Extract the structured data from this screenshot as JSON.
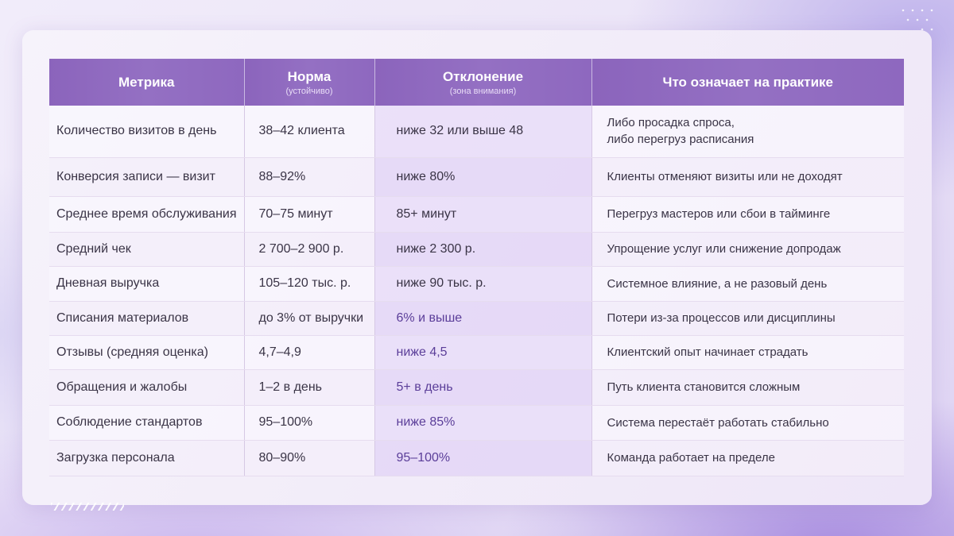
{
  "table": {
    "headers": [
      {
        "title": "Метрика",
        "subtitle": ""
      },
      {
        "title": "Норма",
        "subtitle": "(устойчиво)"
      },
      {
        "title": "Отклонение",
        "subtitle": "(зона внимания)"
      },
      {
        "title": "Что означает на практике",
        "subtitle": ""
      }
    ],
    "rows": [
      {
        "metric": "Количество визитов в день",
        "norm": "38–42 клиента",
        "deviation": "ниже 32 или выше 48",
        "meaning_line1": "Либо просадка спроса,",
        "meaning_line2": "либо перегруз расписания"
      },
      {
        "metric": "Конверсия записи — визит",
        "norm": "88–92%",
        "deviation": "ниже 80%",
        "meaning_line1": "Клиенты отменяют визиты или не доходят",
        "meaning_line2": ""
      },
      {
        "metric": "Среднее время обслуживания",
        "norm": "70–75 минут",
        "deviation": "85+ минут",
        "meaning_line1": "Перегруз мастеров или сбои в тайминге",
        "meaning_line2": ""
      },
      {
        "metric": "Средний чек",
        "norm": "2 700–2 900 р.",
        "deviation": "ниже 2 300 р.",
        "meaning_line1": "Упрощение услуг или снижение допродаж",
        "meaning_line2": ""
      },
      {
        "metric": "Дневная выручка",
        "norm": "105–120 тыс. р.",
        "deviation": "ниже 90 тыс. р.",
        "meaning_line1": "Системное влияние, а не разовый день",
        "meaning_line2": ""
      },
      {
        "metric": "Списания материалов",
        "norm": "до 3% от выручки",
        "deviation": "6% и выше",
        "meaning_line1": "Потери из-за процессов или дисциплины",
        "meaning_line2": ""
      },
      {
        "metric": "Отзывы (средняя оценка)",
        "norm": "4,7–4,9",
        "deviation": "ниже 4,5",
        "meaning_line1": "Клиентский опыт начинает страдать",
        "meaning_line2": ""
      },
      {
        "metric": "Обращения и жалобы",
        "norm": "1–2 в день",
        "deviation": "5+ в день",
        "meaning_line1": "Путь клиента становится сложным",
        "meaning_line2": ""
      },
      {
        "metric": "Соблюдение стандартов",
        "norm": "95–100%",
        "deviation": "ниже 85%",
        "meaning_line1": "Система перестаёт работать стабильно",
        "meaning_line2": ""
      },
      {
        "metric": "Загрузка персонала",
        "norm": "80–90%",
        "deviation": "95–100%",
        "meaning_line1": "Команда работает на пределе",
        "meaning_line2": ""
      }
    ]
  },
  "colors": {
    "header_bg": "#8b64bc",
    "header_text": "#ffffff",
    "deviation_bg": "#e8dcf6",
    "body_text": "#3a3446",
    "accent_text": "#5b3e99"
  }
}
